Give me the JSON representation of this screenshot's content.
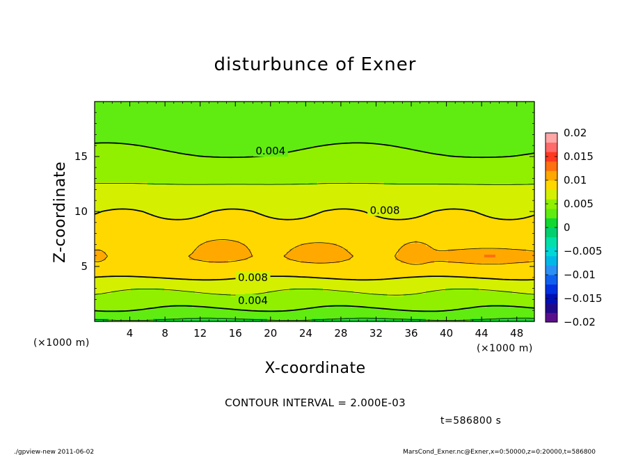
{
  "chart_data": {
    "type": "heatmap",
    "title": "disturbunce of Exner",
    "xlabel": "X-coordinate",
    "ylabel": "Z-coordinate",
    "x_unit": "(×1000 m)",
    "y_unit": "(×1000 m)",
    "xlim": [
      0,
      50
    ],
    "ylim": [
      0,
      20
    ],
    "x_ticks": [
      4,
      8,
      12,
      16,
      20,
      24,
      28,
      32,
      36,
      40,
      44,
      48
    ],
    "y_ticks": [
      5,
      10,
      15
    ],
    "colorbar": {
      "range": [
        -0.02,
        0.02
      ],
      "tick_values": [
        0.02,
        0.015,
        0.01,
        0.005,
        0,
        -0.005,
        -0.01,
        -0.015,
        -0.02
      ],
      "tick_labels": [
        "0.02",
        "0.015",
        "0.01",
        "0.005",
        "0",
        "−0.005",
        "−0.01",
        "−0.015",
        "−0.02"
      ],
      "levels": [
        -0.02,
        -0.018,
        -0.016,
        -0.014,
        -0.012,
        -0.01,
        -0.008,
        -0.006,
        -0.004,
        -0.002,
        0,
        0.002,
        0.004,
        0.006,
        0.008,
        0.01,
        0.012,
        0.014,
        0.016,
        0.018
      ],
      "colors": [
        "#5a0f8a",
        "#200a8c",
        "#0010b4",
        "#0030e0",
        "#1060f0",
        "#2a90f5",
        "#00b8e8",
        "#00d8d8",
        "#00e0a8",
        "#00d070",
        "#10d830",
        "#60ec10",
        "#90f000",
        "#d4f000",
        "#ffd800",
        "#ffa800",
        "#ff7010",
        "#ff3820",
        "#ff6a6a",
        "#ffa6a6"
      ]
    },
    "contour_interval": "CONTOUR INTERVAL = 2.000E-03",
    "contour_labels": [
      {
        "text": "0.004",
        "x": 20,
        "z": 15.5
      },
      {
        "text": "0.008",
        "x": 33,
        "z": 10.1
      },
      {
        "text": "0.008",
        "x": 18,
        "z": 4.0
      },
      {
        "text": "0.004",
        "x": 18,
        "z": 1.9
      }
    ],
    "field_profile_z": [
      0,
      0.5,
      1,
      1.5,
      2,
      3,
      4,
      5,
      5.8,
      6.6,
      8,
      9,
      10,
      10.8,
      11.5,
      12.5,
      13.5,
      15,
      16.5,
      18,
      20
    ],
    "field_profile_values": [
      0.0015,
      0.0028,
      0.0038,
      0.0045,
      0.0051,
      0.0064,
      0.0081,
      0.0094,
      0.0099,
      0.0094,
      0.0088,
      0.0083,
      0.0079,
      0.0074,
      0.0069,
      0.006,
      0.0052,
      0.0042,
      0.0036,
      0.0031,
      0.0026
    ],
    "blobs": [
      {
        "x": 14.5,
        "z": 6.6,
        "rx": 2.9,
        "rz": 1.0
      },
      {
        "x": 25.5,
        "z": 6.4,
        "rx": 2.9,
        "rz": 0.85
      },
      {
        "x": 36.5,
        "z": 6.3,
        "rx": 1.8,
        "rz": 1.05
      },
      {
        "x": 45.0,
        "z": 6.0,
        "rx": 5.5,
        "rz": 0.6
      },
      {
        "x": 0.3,
        "z": 6.0,
        "rx": 0.8,
        "rz": 0.45
      }
    ]
  },
  "annotations": {
    "time": "t=586800 s",
    "footer_left": "./gpview-new   2011-06-02",
    "footer_right": "MarsCond_Exner.nc@Exner,x=0:50000,z=0:20000,t=586800"
  }
}
